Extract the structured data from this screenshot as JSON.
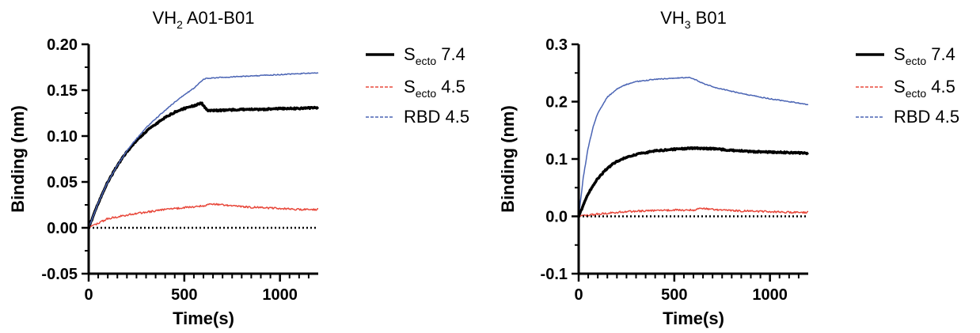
{
  "colors": {
    "s74": "#000000",
    "s45": "#e8483b",
    "rbd45": "#4a64b4",
    "baseline": "#000000"
  },
  "chart_data": [
    {
      "type": "line",
      "title": {
        "main": "VH",
        "sub": "2",
        "rest": " A01-B01"
      },
      "xlabel": "Time(s)",
      "ylabel": "Binding (nm)",
      "xlim": [
        0,
        1200
      ],
      "ylim": [
        -0.05,
        0.2
      ],
      "xticks": [
        0,
        500,
        1000
      ],
      "xtick_labels": [
        "0",
        "500",
        "1000"
      ],
      "yticks": [
        -0.05,
        0.0,
        0.05,
        0.1,
        0.15,
        0.2
      ],
      "ytick_labels": [
        "-0.05",
        "0.00",
        "0.05",
        "0.10",
        "0.15",
        "0.20"
      ],
      "legend_position": "right",
      "legend": [
        {
          "main": "S",
          "sub": "ecto",
          "rest": " 7.4"
        },
        {
          "main": "S",
          "sub": "ecto",
          "rest": " 4.5"
        },
        {
          "main": "RBD 4.5",
          "sub": "",
          "rest": ""
        }
      ],
      "baseline": 0,
      "series": [
        {
          "key": "s74",
          "color": "#000000",
          "style": "solid",
          "width": 3.5,
          "x": [
            0,
            50,
            100,
            150,
            200,
            250,
            300,
            350,
            400,
            450,
            500,
            550,
            590,
            620,
            700,
            800,
            900,
            1000,
            1100,
            1200
          ],
          "y": [
            0.0,
            0.027,
            0.05,
            0.068,
            0.083,
            0.095,
            0.105,
            0.113,
            0.12,
            0.126,
            0.13,
            0.133,
            0.136,
            0.128,
            0.128,
            0.129,
            0.129,
            0.13,
            0.13,
            0.131
          ]
        },
        {
          "key": "s45",
          "color": "#e8483b",
          "style": "solid",
          "width": 1.5,
          "x": [
            0,
            50,
            100,
            200,
            300,
            400,
            500,
            600,
            650,
            700,
            800,
            900,
            1000,
            1100,
            1200
          ],
          "y": [
            0.0,
            0.005,
            0.01,
            0.014,
            0.017,
            0.02,
            0.022,
            0.024,
            0.026,
            0.025,
            0.023,
            0.022,
            0.021,
            0.02,
            0.02
          ]
        },
        {
          "key": "rbd45",
          "color": "#4a64b4",
          "style": "solid",
          "width": 1.5,
          "x": [
            0,
            50,
            100,
            150,
            200,
            250,
            300,
            350,
            400,
            450,
            500,
            550,
            600,
            620,
            700,
            800,
            900,
            1000,
            1100,
            1200
          ],
          "y": [
            0.0,
            0.027,
            0.05,
            0.068,
            0.084,
            0.097,
            0.109,
            0.119,
            0.128,
            0.137,
            0.145,
            0.152,
            0.162,
            0.163,
            0.164,
            0.165,
            0.166,
            0.167,
            0.168,
            0.169
          ]
        }
      ]
    },
    {
      "type": "line",
      "title": {
        "main": "VH",
        "sub": "3",
        "rest": " B01"
      },
      "xlabel": "Time(s)",
      "ylabel": "Binding (nm)",
      "xlim": [
        0,
        1200
      ],
      "ylim": [
        -0.1,
        0.3
      ],
      "xticks": [
        0,
        500,
        1000
      ],
      "xtick_labels": [
        "0",
        "500",
        "1000"
      ],
      "yticks": [
        -0.1,
        0.0,
        0.1,
        0.2,
        0.3
      ],
      "ytick_labels": [
        "-0.1",
        "0.0",
        "0.1",
        "0.2",
        "0.3"
      ],
      "legend_position": "right",
      "legend": [
        {
          "main": "S",
          "sub": "ecto",
          "rest": " 7.4"
        },
        {
          "main": "S",
          "sub": "ecto",
          "rest": " 4.5"
        },
        {
          "main": "RBD 4.5",
          "sub": "",
          "rest": ""
        }
      ],
      "baseline": 0,
      "series": [
        {
          "key": "s74",
          "color": "#000000",
          "style": "solid",
          "width": 3.5,
          "x": [
            0,
            50,
            100,
            150,
            200,
            250,
            300,
            400,
            500,
            600,
            700,
            800,
            900,
            1000,
            1100,
            1200
          ],
          "y": [
            0.0,
            0.04,
            0.066,
            0.084,
            0.096,
            0.103,
            0.108,
            0.114,
            0.117,
            0.119,
            0.118,
            0.115,
            0.113,
            0.112,
            0.111,
            0.11
          ]
        },
        {
          "key": "s45",
          "color": "#e8483b",
          "style": "solid",
          "width": 1.5,
          "x": [
            0,
            100,
            200,
            300,
            400,
            500,
            600,
            650,
            700,
            800,
            900,
            1000,
            1100,
            1200
          ],
          "y": [
            0.0,
            0.004,
            0.007,
            0.009,
            0.01,
            0.011,
            0.011,
            0.014,
            0.012,
            0.01,
            0.009,
            0.008,
            0.007,
            0.007
          ]
        },
        {
          "key": "rbd45",
          "color": "#4a64b4",
          "style": "solid",
          "width": 1.5,
          "x": [
            0,
            25,
            50,
            75,
            100,
            150,
            200,
            250,
            300,
            400,
            500,
            580,
            600,
            650,
            700,
            800,
            900,
            1000,
            1100,
            1200
          ],
          "y": [
            0.0,
            0.07,
            0.12,
            0.155,
            0.18,
            0.208,
            0.222,
            0.23,
            0.235,
            0.239,
            0.241,
            0.242,
            0.24,
            0.232,
            0.226,
            0.218,
            0.211,
            0.205,
            0.2,
            0.195
          ]
        }
      ]
    }
  ]
}
